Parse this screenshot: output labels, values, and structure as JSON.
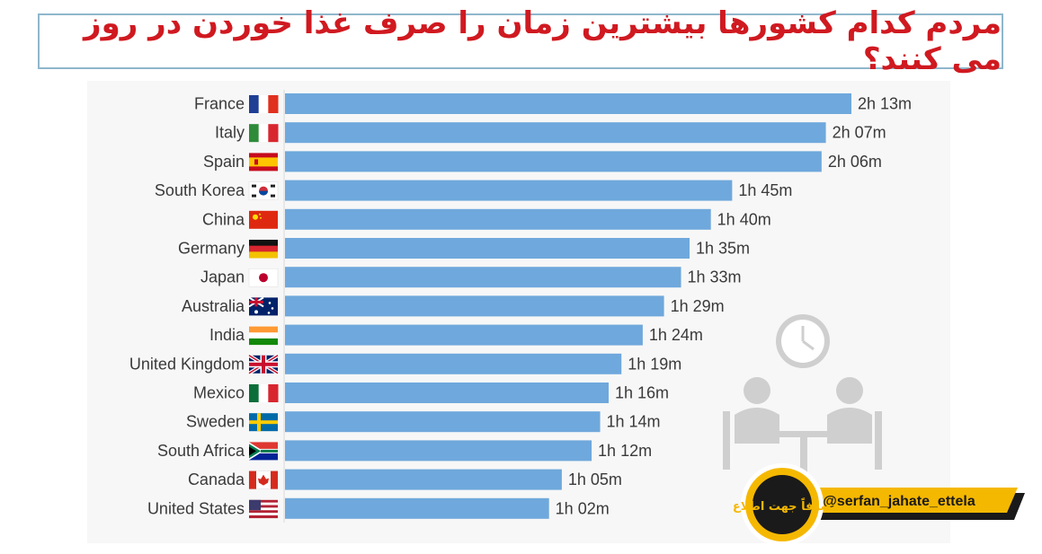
{
  "title": "مردم کدام کشورها بیشترین زمان را صرف غذا خوردن در روز می کنند؟",
  "handle": "@serfan_jahate_ettela",
  "logo_text": "صرفاً جهت اطلاع",
  "colors": {
    "bar": "#6fa8dc",
    "title": "#d01920",
    "border": "#8fb7cc",
    "text": "#3a3a3a",
    "clock": "#cfcfcf"
  },
  "icons": {
    "clock": "clock-icon",
    "dining": "people-eating-icon"
  },
  "chart_data": {
    "type": "bar",
    "orientation": "horizontal",
    "title": "",
    "unit": "minutes per day",
    "categories": [
      "France",
      "Italy",
      "Spain",
      "South Korea",
      "China",
      "Germany",
      "Japan",
      "Australia",
      "India",
      "United Kingdom",
      "Mexico",
      "Sweden",
      "South Africa",
      "Canada",
      "United States"
    ],
    "values": [
      133,
      127,
      126,
      105,
      100,
      95,
      93,
      89,
      84,
      79,
      76,
      74,
      72,
      65,
      62
    ],
    "value_labels": [
      "2h 13m",
      "2h 07m",
      "2h 06m",
      "1h 45m",
      "1h 40m",
      "1h 35m",
      "1h 33m",
      "1h 29m",
      "1h 24m",
      "1h 19m",
      "1h 16m",
      "1h 14m",
      "1h 12m",
      "1h 05m",
      "1h 02m"
    ],
    "flags": [
      "france-flag-icon",
      "italy-flag-icon",
      "spain-flag-icon",
      "south-korea-flag-icon",
      "china-flag-icon",
      "germany-flag-icon",
      "japan-flag-icon",
      "australia-flag-icon",
      "india-flag-icon",
      "uk-flag-icon",
      "mexico-flag-icon",
      "sweden-flag-icon",
      "south-africa-flag-icon",
      "canada-flag-icon",
      "usa-flag-icon"
    ],
    "xlim": [
      0,
      133
    ],
    "grid": false,
    "legend": "none"
  }
}
